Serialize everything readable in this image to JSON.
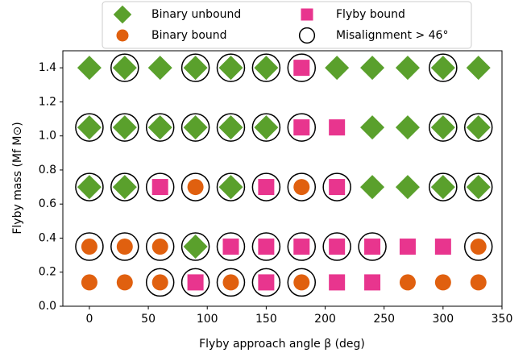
{
  "chart_data": {
    "type": "scatter",
    "xlabel": "Flyby approach angle β (deg)",
    "ylabel": "Flyby mass (Mf M⊙)",
    "xlim": [
      -22.5,
      350
    ],
    "ylim": [
      0,
      1.5
    ],
    "xticks": [
      0,
      50,
      100,
      150,
      200,
      250,
      300,
      350
    ],
    "yticks": [
      {
        "value": 0,
        "label": "0.0"
      },
      0.2,
      0.4,
      0.6,
      0.8,
      {
        "value": 1,
        "label": "1.0"
      },
      1.2,
      1.4
    ],
    "series": [
      {
        "name": "Binary unbound",
        "color": "#5aa02c",
        "marker": "diamond",
        "x": [
          0,
          30,
          60,
          90,
          120,
          150,
          210,
          240,
          270,
          300,
          330,
          0,
          30,
          60,
          90,
          120,
          150,
          240,
          270,
          300,
          330,
          0,
          30,
          120,
          240,
          270,
          300,
          330,
          90
        ],
        "values": [
          1.4,
          1.4,
          1.4,
          1.4,
          1.4,
          1.4,
          1.4,
          1.4,
          1.4,
          1.4,
          1.4,
          1.05,
          1.05,
          1.05,
          1.05,
          1.05,
          1.05,
          1.05,
          1.05,
          1.05,
          1.05,
          0.7,
          0.7,
          0.7,
          0.7,
          0.7,
          0.7,
          0.7,
          0.35
        ]
      },
      {
        "name": "Binary bound",
        "color": "#e0600f",
        "marker": "circle",
        "x": [
          90,
          180,
          0,
          30,
          60,
          330,
          0,
          30,
          60,
          120,
          180,
          270,
          300,
          330
        ],
        "values": [
          0.7,
          0.7,
          0.35,
          0.35,
          0.35,
          0.35,
          0.14,
          0.14,
          0.14,
          0.14,
          0.14,
          0.14,
          0.14,
          0.14
        ]
      },
      {
        "name": "Flyby bound",
        "color": "#e8358e",
        "marker": "square",
        "x": [
          180,
          180,
          210,
          60,
          150,
          210,
          120,
          150,
          180,
          210,
          240,
          270,
          300,
          90,
          150,
          210,
          240
        ],
        "values": [
          1.4,
          1.05,
          1.05,
          0.7,
          0.7,
          0.7,
          0.35,
          0.35,
          0.35,
          0.35,
          0.35,
          0.35,
          0.35,
          0.14,
          0.14,
          0.14,
          0.14
        ]
      },
      {
        "name": "Misalignment > 46°",
        "color": "#000000",
        "marker": "ring",
        "x": [
          30,
          90,
          120,
          150,
          180,
          300,
          0,
          30,
          60,
          90,
          120,
          150,
          180,
          300,
          330,
          0,
          30,
          60,
          90,
          120,
          150,
          180,
          210,
          300,
          330,
          0,
          30,
          60,
          90,
          120,
          150,
          180,
          210,
          240,
          330,
          60,
          90,
          120,
          150,
          180
        ],
        "values": [
          1.4,
          1.4,
          1.4,
          1.4,
          1.4,
          1.4,
          1.05,
          1.05,
          1.05,
          1.05,
          1.05,
          1.05,
          1.05,
          1.05,
          1.05,
          0.7,
          0.7,
          0.7,
          0.7,
          0.7,
          0.7,
          0.7,
          0.7,
          0.7,
          0.7,
          0.35,
          0.35,
          0.35,
          0.35,
          0.35,
          0.35,
          0.35,
          0.35,
          0.35,
          0.35,
          0.14,
          0.14,
          0.14,
          0.14,
          0.14
        ]
      }
    ]
  }
}
